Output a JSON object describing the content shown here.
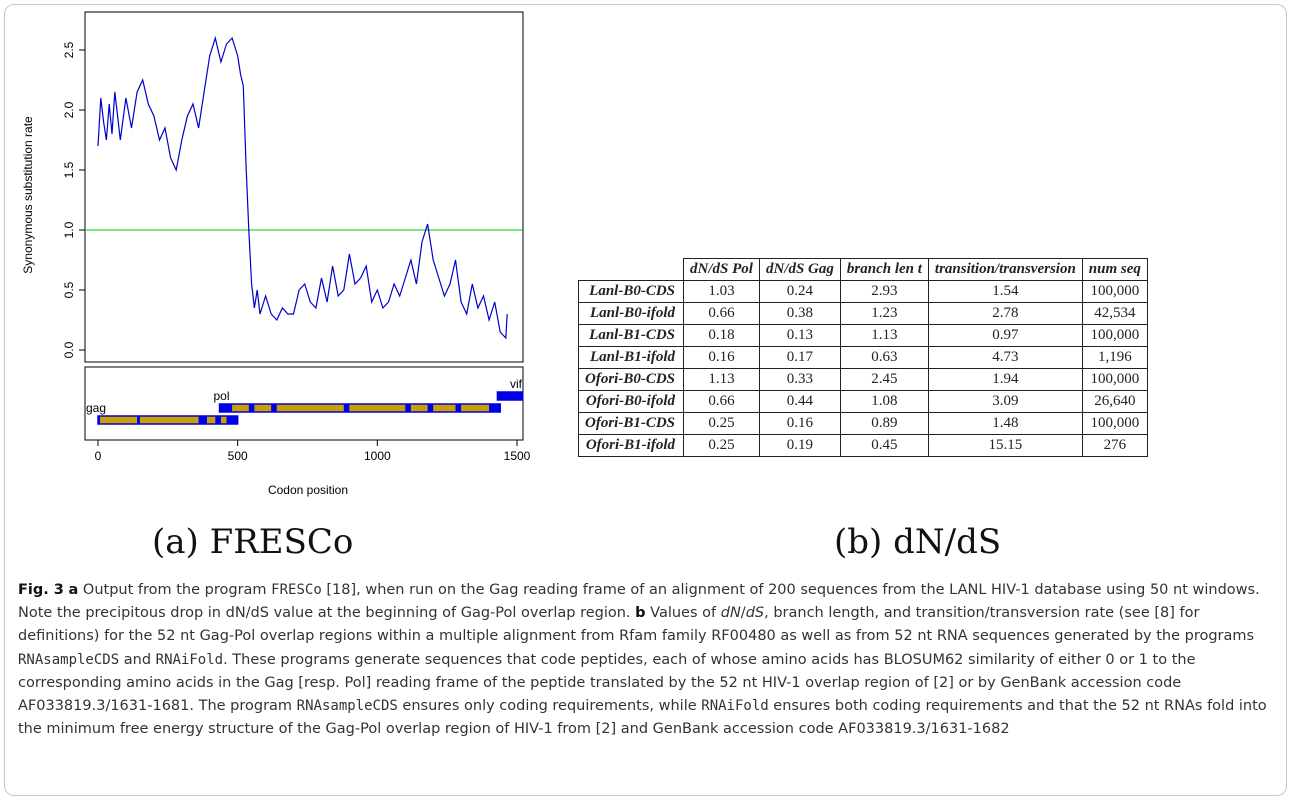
{
  "chart_data": {
    "type": "line",
    "ylabel": "Synonymous substitution rate",
    "xlabel": "Codon position",
    "xlim": [
      0,
      1500
    ],
    "ylim": [
      0,
      2.6
    ],
    "x_ticks": [
      "0",
      "500",
      "1000",
      "1500"
    ],
    "y_ticks": [
      "0.0",
      "0.5",
      "1.0",
      "1.5",
      "2.0",
      "2.5"
    ],
    "reference_line_y": 1.0,
    "colors": {
      "series": "#0000cc",
      "reference": "#00cc00",
      "gene_bar": "#c8a000",
      "gene_blue": "#0000e6"
    },
    "series": [
      {
        "x": [
          0,
          10,
          20,
          30,
          40,
          50,
          60,
          70,
          80,
          100,
          120,
          140,
          160,
          180,
          200,
          220,
          240,
          260,
          280,
          300,
          320,
          340,
          360,
          380,
          400,
          420,
          440,
          460,
          480,
          500,
          510,
          520,
          530,
          540,
          550,
          560,
          570,
          580,
          600,
          620,
          640,
          660,
          680,
          700,
          720,
          740,
          760,
          780,
          800,
          820,
          840,
          860,
          880,
          900,
          920,
          940,
          960,
          980,
          1000,
          1020,
          1040,
          1060,
          1080,
          1100,
          1120,
          1140,
          1160,
          1180,
          1200,
          1220,
          1240,
          1260,
          1280,
          1300,
          1320,
          1340,
          1360,
          1380,
          1400,
          1420,
          1440,
          1460,
          1465
        ],
        "y": [
          1.7,
          2.1,
          1.9,
          1.75,
          2.05,
          1.8,
          2.15,
          1.95,
          1.75,
          2.1,
          1.85,
          2.15,
          2.25,
          2.05,
          1.95,
          1.75,
          1.85,
          1.6,
          1.5,
          1.75,
          1.95,
          2.05,
          1.85,
          2.15,
          2.45,
          2.6,
          2.4,
          2.55,
          2.6,
          2.45,
          2.3,
          2.2,
          1.55,
          1.0,
          0.55,
          0.35,
          0.5,
          0.3,
          0.45,
          0.3,
          0.25,
          0.35,
          0.3,
          0.3,
          0.5,
          0.55,
          0.4,
          0.35,
          0.6,
          0.4,
          0.7,
          0.45,
          0.5,
          0.8,
          0.55,
          0.6,
          0.7,
          0.4,
          0.5,
          0.35,
          0.4,
          0.55,
          0.45,
          0.6,
          0.75,
          0.55,
          0.9,
          1.05,
          0.75,
          0.6,
          0.45,
          0.55,
          0.75,
          0.4,
          0.3,
          0.55,
          0.35,
          0.45,
          0.25,
          0.4,
          0.15,
          0.1,
          0.3
        ]
      }
    ],
    "gene_labels": [
      "gag",
      "pol",
      "vif"
    ],
    "genes": [
      {
        "name": "gag",
        "start": 0,
        "end": 500,
        "row": 2
      },
      {
        "name": "pol",
        "start": 435,
        "end": 1440,
        "row": 1
      },
      {
        "name": "vif",
        "start": 1430,
        "end": 1520,
        "row": 0
      }
    ]
  },
  "table": {
    "headers": [
      "dN/dS Pol",
      "dN/dS Gag",
      "branch len t",
      "transition/transversion",
      "num seq"
    ],
    "rows": [
      {
        "name": "Lanl-B0-CDS",
        "values": [
          "1.03",
          "0.24",
          "2.93",
          "1.54",
          "100,000"
        ]
      },
      {
        "name": "Lanl-B0-ifold",
        "values": [
          "0.66",
          "0.38",
          "1.23",
          "2.78",
          "42,534"
        ]
      },
      {
        "name": "Lanl-B1-CDS",
        "values": [
          "0.18",
          "0.13",
          "1.13",
          "0.97",
          "100,000"
        ]
      },
      {
        "name": "Lanl-B1-ifold",
        "values": [
          "0.16",
          "0.17",
          "0.63",
          "4.73",
          "1,196"
        ]
      },
      {
        "name": "Ofori-B0-CDS",
        "values": [
          "1.13",
          "0.33",
          "2.45",
          "1.94",
          "100,000"
        ]
      },
      {
        "name": "Ofori-B0-ifold",
        "values": [
          "0.66",
          "0.44",
          "1.08",
          "3.09",
          "26,640"
        ]
      },
      {
        "name": "Ofori-B1-CDS",
        "values": [
          "0.25",
          "0.16",
          "0.89",
          "1.48",
          "100,000"
        ]
      },
      {
        "name": "Ofori-B1-ifold",
        "values": [
          "0.25",
          "0.19",
          "0.45",
          "15.15",
          "276"
        ]
      }
    ]
  },
  "subfig_labels": {
    "a": "(a) FRESCo",
    "b": "(b) dN/dS"
  },
  "caption": {
    "fig": "Fig. 3",
    "a_letter": "a",
    "text1": " Output from the program ",
    "prog_fresco": "FRESCo",
    "text2": " [18], when run on the Gag reading frame of an alignment of 200 sequences from the LANL HIV-1 database using 50 nt windows. Note the precipitous drop in dN/dS value at the beginning of Gag-Pol overlap region. ",
    "b_letter": "b",
    "text3": " Values of ",
    "dnds": "dN",
    "dnds_slash": "/",
    "dnds_ds": "dS",
    "text4": ", branch length, and transition/transversion rate (see [8] for definitions) for the 52 nt Gag-Pol overlap regions within a multiple alignment from Rfam family RF00480 as well as from 52 nt RNA sequences generated by the programs ",
    "prog_rnasamplecds": "RNAsampleCDS",
    "text5": " and ",
    "prog_rnaifold": "RNAiFold",
    "text6": ". These programs generate sequences that code peptides, each of whose amino acids has BLOSUM62 similarity of either 0 or 1 to the corresponding amino acids in the Gag [resp. Pol] reading frame of the peptide translated by the 52 nt HIV-1 overlap region of [2] or by GenBank accession code AF033819.3/1631-1681. The program ",
    "prog_rnasamplecds2": "RNAsampleCDS",
    "text7": " ensures only coding requirements, while ",
    "prog_rnaifold2": "RNAiFold",
    "text8": " ensures both coding requirements and that the 52 nt RNAs fold into the minimum free energy structure of the Gag-Pol overlap region of HIV-1 from [2] and GenBank accession code AF033819.3/1631-1682"
  }
}
